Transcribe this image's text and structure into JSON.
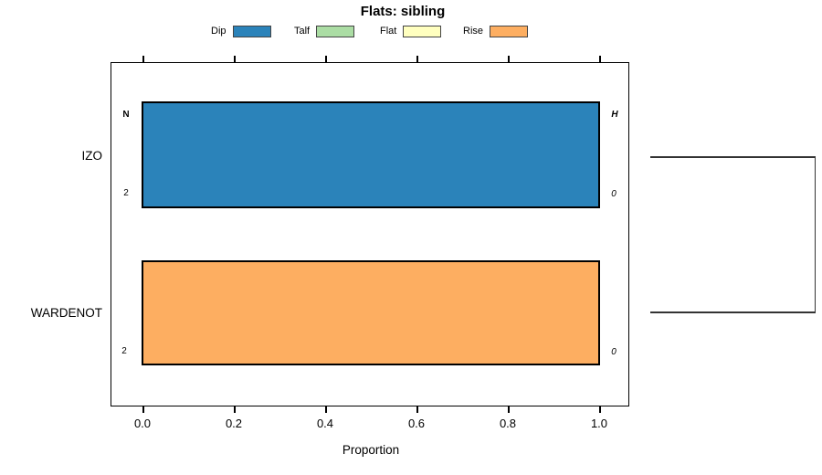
{
  "title": "Flats: sibling",
  "legend": {
    "position": "top",
    "items": [
      {
        "label": "Dip",
        "color": "#2B83BA"
      },
      {
        "label": "Talf",
        "color": "#ABDDA4"
      },
      {
        "label": "Flat",
        "color": "#FFFFBF"
      },
      {
        "label": "Rise",
        "color": "#FDAE61"
      }
    ]
  },
  "chart_data": {
    "type": "bar",
    "orientation": "horizontal",
    "title": "Flats: sibling",
    "xlabel": "Proportion",
    "xlim": [
      0,
      1
    ],
    "xticks": [
      "0.0",
      "0.2",
      "0.4",
      "0.6",
      "0.8",
      "1.0"
    ],
    "categories": [
      "IZO",
      "WARDENOT"
    ],
    "series": [
      {
        "name": "Dip",
        "color": "#2B83BA",
        "values": [
          1.0,
          0.0
        ]
      },
      {
        "name": "Talf",
        "color": "#ABDDA4",
        "values": [
          0.0,
          0.0
        ]
      },
      {
        "name": "Flat",
        "color": "#FFFFBF",
        "values": [
          0.0,
          0.0
        ]
      },
      {
        "name": "Rise",
        "color": "#FDAE61",
        "values": [
          0.0,
          1.0
        ]
      }
    ],
    "row_annotations": [
      {
        "left_header": "N",
        "left_count": "2",
        "right_header": "H",
        "right_count": "0"
      },
      {
        "left_count": "2",
        "right_count": "0"
      }
    ],
    "grid": false,
    "right_dendrogram": {
      "joins": [
        "IZO",
        "WARDENOT"
      ]
    }
  }
}
